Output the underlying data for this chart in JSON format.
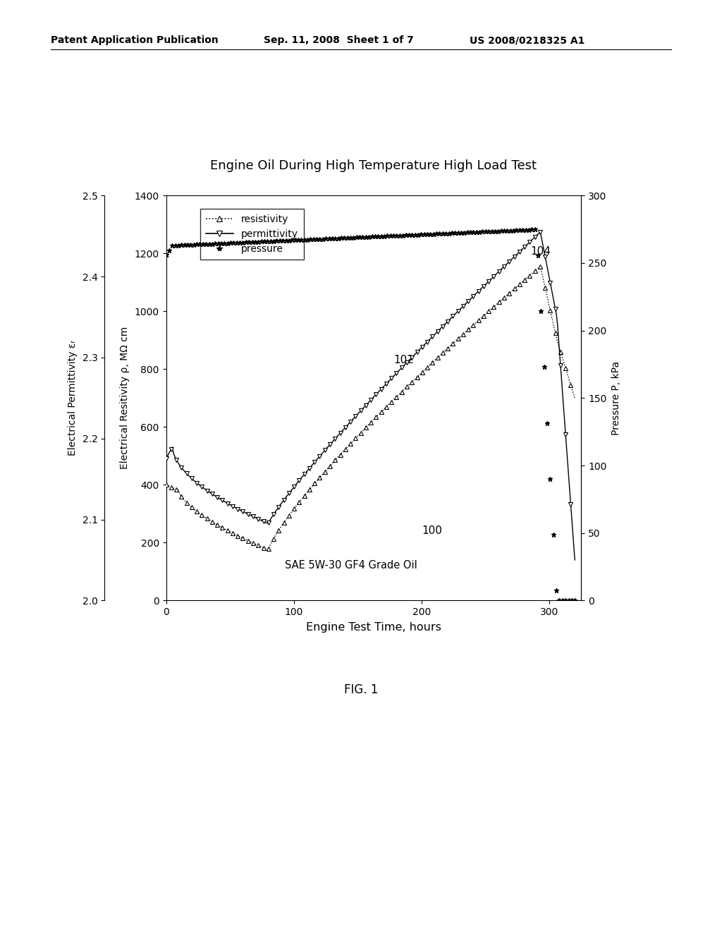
{
  "title": "Engine Oil During High Temperature High Load Test",
  "xlabel": "Engine Test Time, hours",
  "ylabel_perm": "Electrical Permittivity εᵣ",
  "ylabel_res": "Electrical Resitivity ρ, MΩ cm",
  "ylabel_pres": "Pressure P, kPa",
  "header_left": "Patent Application Publication",
  "header_mid": "Sep. 11, 2008  Sheet 1 of 7",
  "header_right": "US 2008/0218325 A1",
  "annotation_text": "SAE 5W-30 GF4 Grade Oil",
  "fig_label": "FIG. 1",
  "label_100": "100",
  "label_102": "102",
  "label_104": "104",
  "xlim": [
    0,
    325
  ],
  "ylim_perm": [
    2.0,
    2.5
  ],
  "ylim_res": [
    0,
    1400
  ],
  "ylim_pres": [
    0,
    300
  ],
  "xticks": [
    0,
    100,
    200,
    300
  ],
  "yticks_perm": [
    2.0,
    2.1,
    2.2,
    2.3,
    2.4,
    2.5
  ],
  "yticks_res": [
    0,
    200,
    400,
    600,
    800,
    1000,
    1200,
    1400
  ],
  "yticks_pres": [
    0,
    50,
    100,
    150,
    200,
    250,
    300
  ],
  "background_color": "#ffffff"
}
